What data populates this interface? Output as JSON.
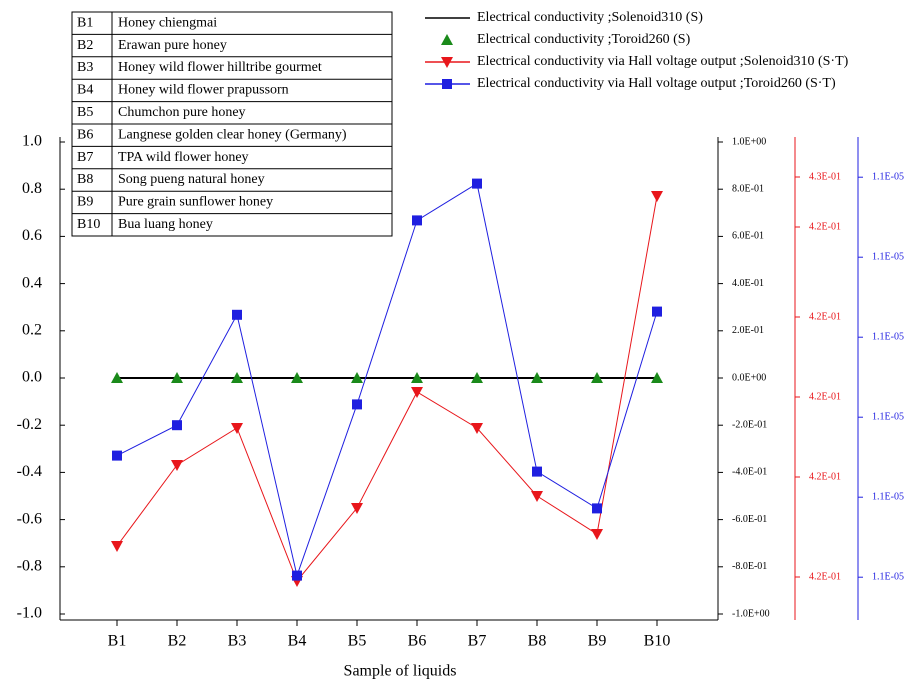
{
  "chart_data": {
    "type": "line",
    "x_label": "Sample of liquids",
    "categories": [
      "B1",
      "B2",
      "B3",
      "B4",
      "B5",
      "B6",
      "B7",
      "B8",
      "B9",
      "B10"
    ],
    "sample_key": [
      [
        "B1",
        "Honey chiengmai"
      ],
      [
        "B2",
        "Erawan pure honey"
      ],
      [
        "B3",
        "Honey wild flower hilltribe gourmet"
      ],
      [
        "B4",
        "Honey wild flower prapussorn"
      ],
      [
        "B5",
        "Chumchon pure honey"
      ],
      [
        "B6",
        "Langnese golden clear honey (Germany)"
      ],
      [
        "B7",
        "TPA wild flower honey"
      ],
      [
        "B8",
        "Song pueng natural honey"
      ],
      [
        "B9",
        "Pure grain sunflower honey"
      ],
      [
        "B10",
        "Bua luang honey"
      ]
    ],
    "ylim": [
      -1.0,
      1.0
    ],
    "yticks": [
      {
        "value": 1.0,
        "label": "1.0"
      },
      0.8,
      0.6,
      0.4,
      0.2,
      {
        "value": 0.0,
        "label": "0.0"
      },
      -0.2,
      -0.4,
      -0.6,
      -0.8,
      {
        "value": -1.0,
        "label": "-1.0"
      }
    ],
    "y2lim": [
      -1.0,
      1.0
    ],
    "y2ticks": [
      {
        "value": 1.0,
        "label": "1.0E+00"
      },
      {
        "value": 0.8,
        "label": "8.0E-01"
      },
      {
        "value": 0.6,
        "label": "6.0E-01"
      },
      {
        "value": 0.4,
        "label": "4.0E-01"
      },
      {
        "value": 0.2,
        "label": "2.0E-01"
      },
      {
        "value": 0.0,
        "label": "0.0E+00"
      },
      {
        "value": -0.2,
        "label": "-2.0E-01"
      },
      {
        "value": -0.4,
        "label": "-4.0E-01"
      },
      {
        "value": -0.6,
        "label": "-6.0E-01"
      },
      {
        "value": -0.8,
        "label": "-8.0E-01"
      },
      {
        "value": -1.0,
        "label": "-1.0E+00"
      }
    ],
    "y3lim": [
      0.41676,
      0.4262
    ],
    "y3ticks": [
      {
        "value": 0.4255,
        "label": "4.3E-01"
      },
      {
        "value": 0.4245,
        "label": "4.2E-01"
      },
      {
        "value": 0.4227,
        "label": "4.2E-01"
      },
      {
        "value": 0.4211,
        "label": "4.2E-01"
      },
      {
        "value": 0.4195,
        "label": "4.2E-01"
      },
      {
        "value": 0.4175,
        "label": "4.2E-01"
      }
    ],
    "y3color": "#e8161b",
    "y4lim": [
      1.10977e-05,
      1.11272e-05
    ],
    "y4ticks": [
      {
        "value": 1.1125e-05,
        "label": "1.1E-05"
      },
      {
        "value": 1.112e-05,
        "label": "1.1E-05"
      },
      {
        "value": 1.1115e-05,
        "label": "1.1E-05"
      },
      {
        "value": 1.111e-05,
        "label": "1.1E-05"
      },
      {
        "value": 1.1105e-05,
        "label": "1.1E-05"
      },
      {
        "value": 1.11e-05,
        "label": "1.1E-05"
      }
    ],
    "y4color": "#1f1fe0",
    "series": [
      {
        "name": "Electrical conductivity ;Solenoid310 (S)",
        "color": "#000000",
        "marker": "none",
        "show_line": true,
        "axis": "y2",
        "values": [
          0,
          0,
          0,
          0,
          0,
          0,
          0,
          0,
          0,
          0
        ]
      },
      {
        "name": "Electrical conductivity ;Toroid260 (S)",
        "color": "#1a8a1a",
        "marker": "triangle-up",
        "show_line": false,
        "axis": "y",
        "values": [
          0,
          0,
          0,
          0,
          0,
          0,
          0,
          0,
          0,
          0
        ]
      },
      {
        "name": "Electrical conductivity via Hall voltage output ;Solenoid310 (S·T)",
        "color": "#e8161b",
        "marker": "triangle-down",
        "show_line": true,
        "axis": "y3",
        "values": [
          0.41812,
          0.41974,
          0.42048,
          0.41742,
          0.41888,
          0.4212,
          0.42048,
          0.41912,
          0.41836,
          0.42512
        ]
      },
      {
        "name": "Electrical conductivity via Hall voltage output ;Toroid260 (S·T)",
        "color": "#1f1fe0",
        "marker": "square",
        "show_line": true,
        "axis": "y4",
        "values": [
          1.11076e-05,
          1.11095e-05,
          1.11164e-05,
          1.11001e-05,
          1.11108e-05,
          1.11223e-05,
          1.11246e-05,
          1.11066e-05,
          1.11043e-05,
          1.11166e-05
        ]
      }
    ]
  }
}
